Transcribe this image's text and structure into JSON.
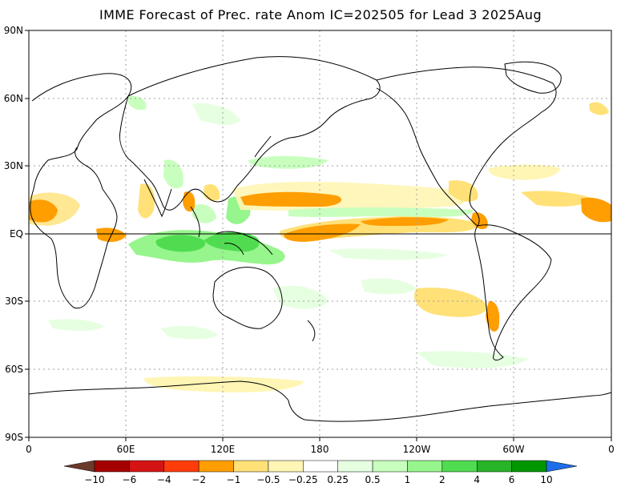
{
  "title": "IMME Forecast of Prec. rate Anom IC=202505 for Lead 3 2025Aug",
  "lat_labels": [
    "90N",
    "60N",
    "30N",
    "EQ",
    "30S",
    "60S",
    "90S"
  ],
  "lon_labels": [
    "0",
    "60E",
    "120E",
    "180",
    "120W",
    "60W",
    "0"
  ],
  "colorbar": {
    "labels": [
      "-10",
      "-6",
      "-4",
      "-2",
      "-1",
      "-0.5",
      "-0.25",
      "0.25",
      "0.5",
      "1",
      "2",
      "4",
      "6",
      "10"
    ],
    "colors": [
      "#6b3a2a",
      "#a50000",
      "#d41414",
      "#ff3c0a",
      "#ff9e00",
      "#ffe178",
      "#fff5b4",
      "#ffffff",
      "#e6ffe1",
      "#c8ffbe",
      "#96f58c",
      "#50dc50",
      "#28b428",
      "#009600",
      "#1e6eeb"
    ]
  }
}
